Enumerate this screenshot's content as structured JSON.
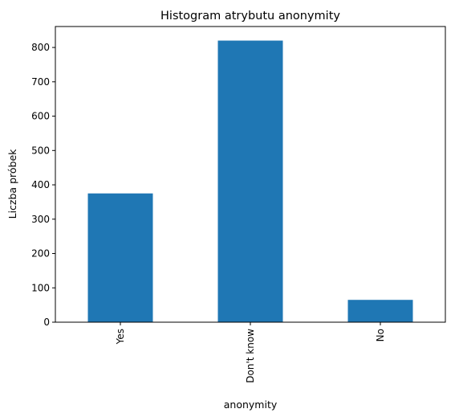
{
  "chart_data": {
    "type": "bar",
    "title": "Histogram atrybutu anonymity",
    "xlabel": "anonymity",
    "ylabel": "Liczba próbek",
    "categories": [
      "Yes",
      "Don't know",
      "No"
    ],
    "values": [
      375,
      820,
      65
    ],
    "ylim": [
      0,
      861
    ],
    "yticks": [
      0,
      100,
      200,
      300,
      400,
      500,
      600,
      700,
      800
    ],
    "bar_color": "#1f77b4",
    "grid": false,
    "x_tick_rotation": "vertical"
  }
}
